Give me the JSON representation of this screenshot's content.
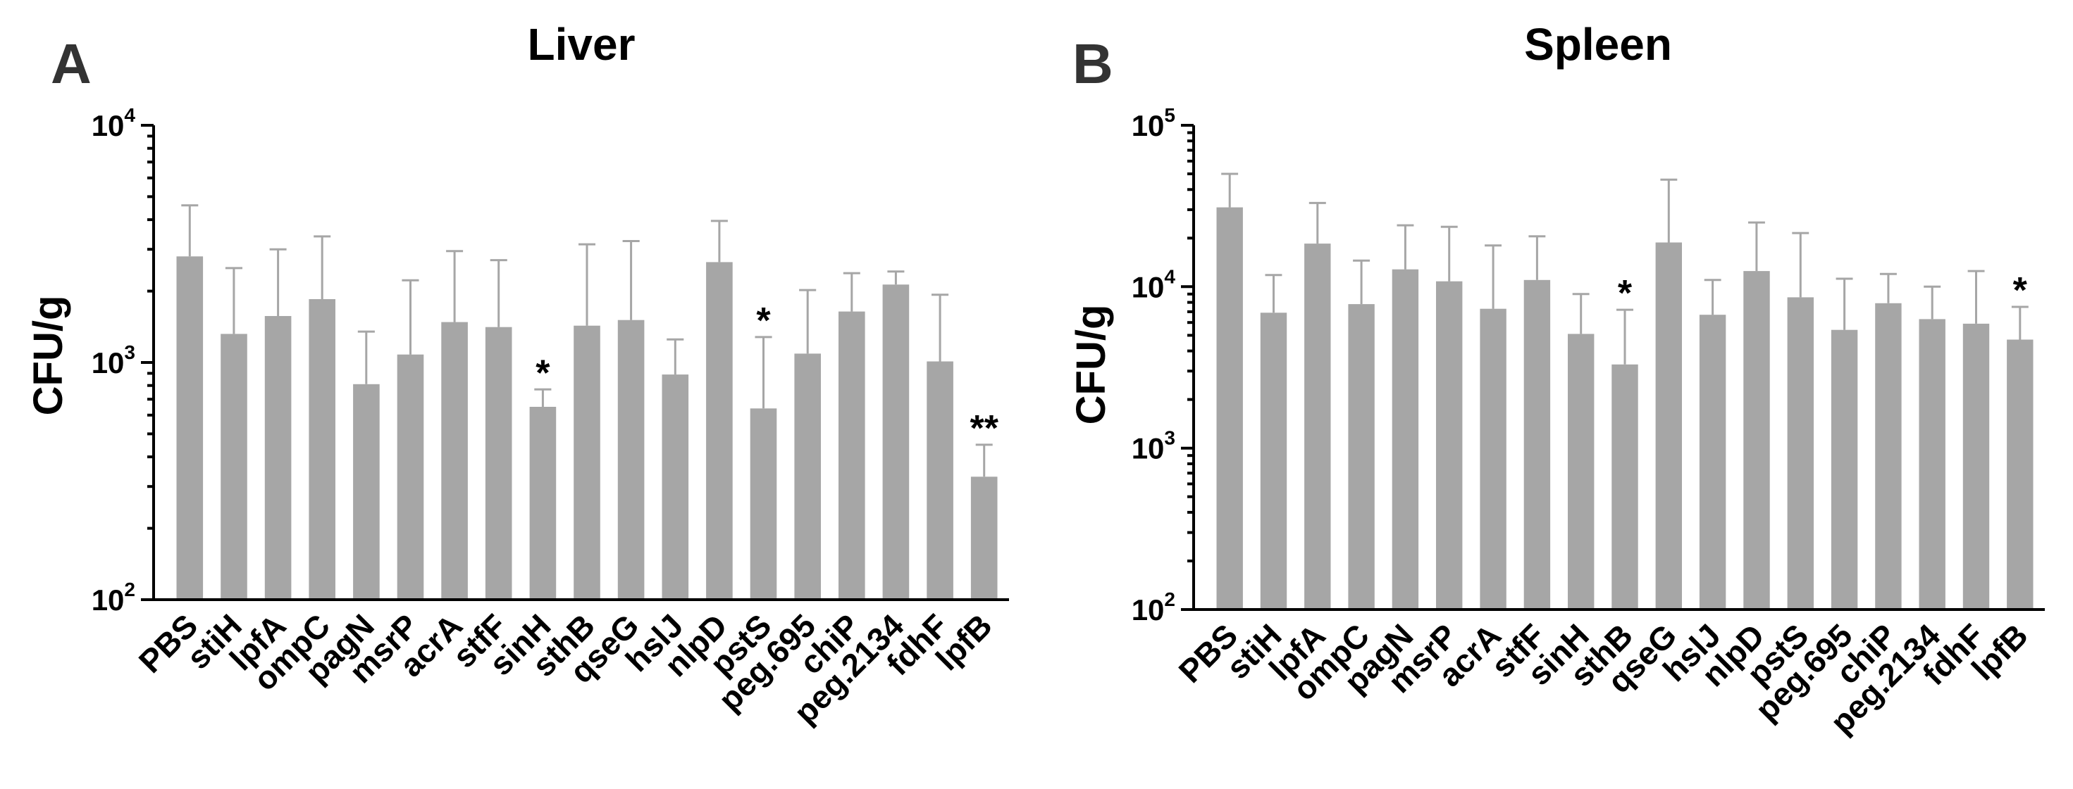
{
  "chart_data": [
    {
      "type": "bar",
      "panel": "A",
      "title": "Liver",
      "xlabel": "",
      "ylabel": "CFU/g",
      "yscale": "log",
      "ylim": [
        100,
        10000
      ],
      "yticks": [
        {
          "base": "10",
          "exp": "2"
        },
        {
          "base": "10",
          "exp": "3"
        },
        {
          "base": "10",
          "exp": "4"
        }
      ],
      "bar_color": "#a6a6a6",
      "categories": [
        "PBS",
        "stiH",
        "lpfA",
        "ompC",
        "pagN",
        "msrP",
        "acrA",
        "stfF",
        "sinH",
        "sthB",
        "qseG",
        "hslJ",
        "nlpD",
        "pstS",
        "peg.695",
        "chiP",
        "peg.2134",
        "fdhF",
        "lpfB"
      ],
      "values": [
        2800,
        1320,
        1570,
        1850,
        810,
        1080,
        1480,
        1410,
        650,
        1430,
        1510,
        890,
        2650,
        640,
        1090,
        1640,
        2130,
        1010,
        330
      ],
      "error_upper": [
        4600,
        2500,
        3000,
        3400,
        1350,
        2220,
        2950,
        2700,
        770,
        3150,
        3250,
        1250,
        3950,
        1280,
        2020,
        2380,
        2420,
        1930,
        450
      ],
      "significance": [
        "",
        "",
        "",
        "",
        "",
        "",
        "",
        "",
        "*",
        "",
        "",
        "",
        "",
        "*",
        "",
        "",
        "",
        "",
        "**"
      ]
    },
    {
      "type": "bar",
      "panel": "B",
      "title": "Spleen",
      "xlabel": "",
      "ylabel": "CFU/g",
      "yscale": "log",
      "ylim": [
        100,
        100000
      ],
      "yticks": [
        {
          "base": "10",
          "exp": "2"
        },
        {
          "base": "10",
          "exp": "3"
        },
        {
          "base": "10",
          "exp": "4"
        },
        {
          "base": "10",
          "exp": "5"
        }
      ],
      "bar_color": "#a6a6a6",
      "categories": [
        "PBS",
        "stiH",
        "lpfA",
        "ompC",
        "pagN",
        "msrP",
        "acrA",
        "stfF",
        "sinH",
        "sthB",
        "qseG",
        "hslJ",
        "nlpD",
        "pstS",
        "peg.695",
        "chiP",
        "peg.2134",
        "fdhF",
        "lpfB"
      ],
      "values": [
        31000,
        6900,
        18500,
        7800,
        12800,
        10800,
        7300,
        11000,
        5100,
        3300,
        18800,
        6700,
        12500,
        8600,
        5400,
        7900,
        6300,
        5900,
        4700
      ],
      "error_upper": [
        50000,
        11800,
        33000,
        14500,
        24000,
        23500,
        18000,
        20500,
        9000,
        7200,
        46000,
        11000,
        25000,
        21500,
        11200,
        12000,
        10000,
        12500,
        7500
      ],
      "significance": [
        "",
        "",
        "",
        "",
        "",
        "",
        "",
        "",
        "",
        "*",
        "",
        "",
        "",
        "",
        "",
        "",
        "",
        "",
        "*"
      ]
    }
  ]
}
